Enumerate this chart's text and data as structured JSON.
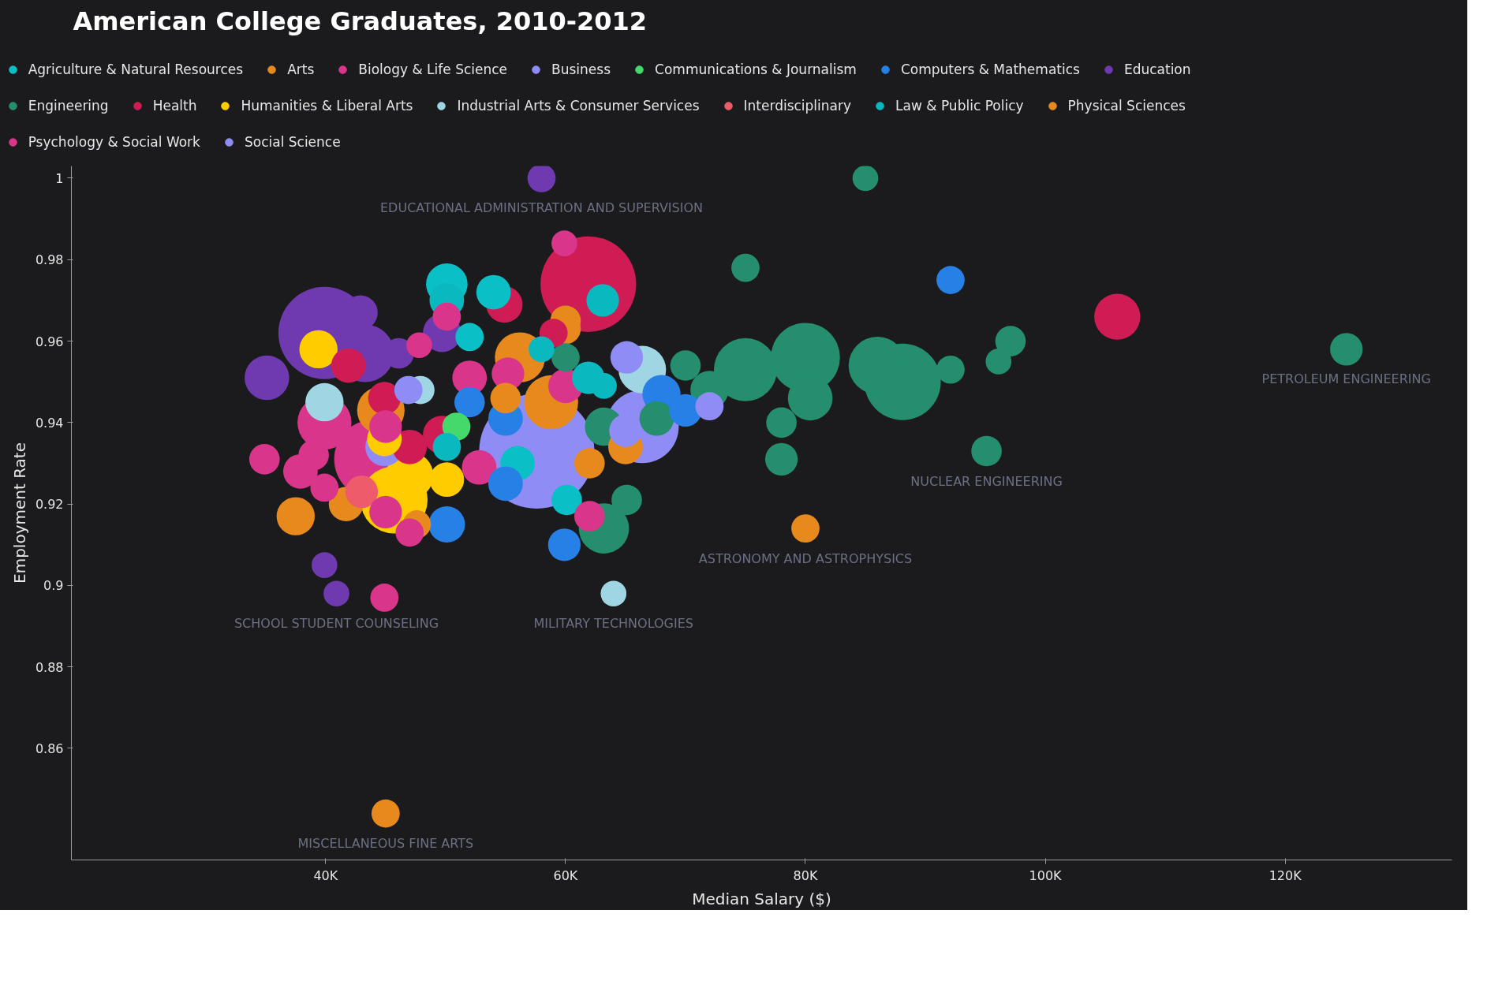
{
  "chart_data": {
    "type": "bubble",
    "title": "American College Graduates, 2010-2012",
    "xlabel": "Median Salary ($)",
    "ylabel": "Employment Rate",
    "legend": "top",
    "xlim": [
      18800,
      133900
    ],
    "ylim": [
      0.8326,
      1.003
    ],
    "xticks": [
      {
        "value": 40000,
        "label": "40K"
      },
      {
        "value": 60000,
        "label": "60K"
      },
      {
        "value": 80000,
        "label": "80K"
      },
      {
        "value": 100000,
        "label": "100K"
      },
      {
        "value": 120000,
        "label": "120K"
      }
    ],
    "yticks": [
      0.86,
      0.88,
      0.9,
      0.92,
      0.94,
      0.96,
      0.98,
      1
    ],
    "annotations": [
      {
        "text": "EDUCATIONAL ADMINISTRATION AND SUPERVISION",
        "x": 58000,
        "y": 1.0
      },
      {
        "text": "PETROLEUM ENGINEERING",
        "x": 125100,
        "y": 0.958
      },
      {
        "text": "NUCLEAR ENGINEERING",
        "x": 95100,
        "y": 0.933
      },
      {
        "text": "ASTRONOMY AND ASTROPHYSICS",
        "x": 80000,
        "y": 0.914
      },
      {
        "text": "SCHOOL STUDENT COUNSELING",
        "x": 40900,
        "y": 0.898
      },
      {
        "text": "MILITARY TECHNOLOGIES",
        "x": 64000,
        "y": 0.898
      },
      {
        "text": "MISCELLANEOUS FINE ARTS",
        "x": 45000,
        "y": 0.844
      }
    ],
    "series": [
      {
        "name": "Agriculture & Natural Resources",
        "color": "#0bbfc6",
        "x": [
          50100,
          54000,
          52000,
          60100,
          56000
        ],
        "values": [
          0.974,
          0.972,
          0.961,
          0.921,
          0.93
        ],
        "sizes": [
          0.13,
          0.09,
          0.06,
          0.07,
          0.09
        ]
      },
      {
        "name": "Arts",
        "color": "#e8891e",
        "x": [
          45000,
          37500,
          41700,
          47600,
          44600,
          55000
        ],
        "values": [
          0.844,
          0.917,
          0.92,
          0.915,
          0.943,
          0.946
        ],
        "sizes": [
          0.06,
          0.11,
          0.09,
          0.06,
          0.17,
          0.07
        ]
      },
      {
        "name": "Biology & Life Science",
        "color": "#d9368b",
        "x": [
          59900,
          50100,
          47800,
          55200,
          52000,
          60000,
          62000,
          52800
        ],
        "values": [
          0.984,
          0.966,
          0.959,
          0.952,
          0.951,
          0.949,
          0.917,
          0.929
        ],
        "sizes": [
          0.05,
          0.06,
          0.05,
          0.08,
          0.09,
          0.09,
          0.07,
          0.09
        ]
      },
      {
        "name": "Business",
        "color": "#8f8cf5",
        "x": [
          57600,
          66400,
          65100,
          65000,
          72000
        ],
        "values": [
          0.933,
          0.939,
          0.956,
          0.938,
          0.944
        ],
        "sizes": [
          1,
          0.4,
          0.08,
          0.08,
          0.06
        ]
      },
      {
        "name": "Communications & Journalism",
        "color": "#45d96b",
        "x": [
          50900
        ],
        "values": [
          0.939
        ],
        "sizes": [
          0.06
        ]
      },
      {
        "name": "Computers & Mathematics",
        "color": "#2680e6",
        "x": [
          92100,
          50100,
          55000,
          59900,
          55000,
          68000,
          70000,
          52000
        ],
        "values": [
          0.975,
          0.915,
          0.925,
          0.91,
          0.941,
          0.947,
          0.943,
          0.945
        ],
        "sizes": [
          0.06,
          0.1,
          0.09,
          0.08,
          0.09,
          0.11,
          0.08,
          0.07
        ]
      },
      {
        "name": "Education",
        "color": "#6f3aaf",
        "x": [
          58000,
          39900,
          42900,
          43300,
          35100,
          40900,
          39900,
          46100,
          49700
        ],
        "values": [
          1.0,
          0.962,
          0.967,
          0.957,
          0.951,
          0.898,
          0.905,
          0.957,
          0.962
        ],
        "sizes": [
          0.06,
          0.64,
          0.09,
          0.25,
          0.15,
          0.05,
          0.05,
          0.07,
          0.11
        ]
      },
      {
        "name": "Engineering",
        "color": "#248e6e",
        "x": [
          85000,
          75000,
          97100,
          96100,
          92100,
          88100,
          86000,
          80000,
          80400,
          78000,
          78000,
          95100,
          75000,
          72000,
          63200,
          65100,
          125100,
          60000,
          63200,
          70000,
          67600
        ],
        "values": [
          1.0,
          0.978,
          0.96,
          0.955,
          0.953,
          0.95,
          0.954,
          0.956,
          0.946,
          0.94,
          0.931,
          0.933,
          0.953,
          0.948,
          0.914,
          0.921,
          0.958,
          0.956,
          0.939,
          0.954,
          0.941
        ],
        "sizes": [
          0.05,
          0.06,
          0.07,
          0.05,
          0.06,
          0.44,
          0.25,
          0.36,
          0.15,
          0.07,
          0.08,
          0.07,
          0.3,
          0.11,
          0.19,
          0.07,
          0.08,
          0.06,
          0.11,
          0.07,
          0.09
        ]
      },
      {
        "name": "Health",
        "color": "#cf1c55",
        "x": [
          61900,
          54900,
          41900,
          44900,
          47000,
          106000,
          49700,
          59000
        ],
        "values": [
          0.974,
          0.969,
          0.954,
          0.946,
          0.934,
          0.966,
          0.937,
          0.962
        ],
        "sizes": [
          0.69,
          0.1,
          0.09,
          0.08,
          0.09,
          0.16,
          0.11,
          0.06
        ]
      },
      {
        "name": "Humanities & Liberal Arts",
        "color": "#ffcc00",
        "x": [
          39400,
          45700,
          50100,
          47000,
          44900
        ],
        "values": [
          0.958,
          0.921,
          0.926,
          0.927,
          0.936
        ],
        "sizes": [
          0.11,
          0.34,
          0.09,
          0.17,
          0.09
        ]
      },
      {
        "name": "Industrial Arts & Consumer Services",
        "color": "#a0d6e4",
        "x": [
          64000,
          39900,
          47900,
          66400
        ],
        "values": [
          0.898,
          0.945,
          0.948,
          0.953
        ],
        "sizes": [
          0.05,
          0.11,
          0.06,
          0.17
        ]
      },
      {
        "name": "Interdisciplinary",
        "color": "#ee5b6a",
        "x": [
          43000
        ],
        "values": [
          0.923
        ],
        "sizes": [
          0.08
        ]
      },
      {
        "name": "Law & Public Policy",
        "color": "#0ab8c0",
        "x": [
          63100,
          50100,
          61900,
          50100,
          58000,
          63200
        ],
        "values": [
          0.97,
          0.97,
          0.951,
          0.934,
          0.958,
          0.949
        ],
        "sizes": [
          0.08,
          0.09,
          0.08,
          0.06,
          0.05,
          0.05
        ]
      },
      {
        "name": "Physical Sciences",
        "color": "#e8891e",
        "x": [
          80000,
          62000,
          60000,
          60000,
          56200,
          58800,
          65000
        ],
        "values": [
          0.914,
          0.93,
          0.963,
          0.965,
          0.956,
          0.945,
          0.934
        ],
        "sizes": [
          0.06,
          0.07,
          0.07,
          0.07,
          0.19,
          0.22,
          0.09
        ]
      },
      {
        "name": "Psychology & Social Work",
        "color": "#d9368b",
        "x": [
          34900,
          37900,
          44900,
          39900,
          39000,
          39900,
          45000,
          47000,
          45000,
          44000
        ],
        "values": [
          0.931,
          0.928,
          0.897,
          0.94,
          0.932,
          0.924,
          0.918,
          0.913,
          0.939,
          0.931
        ],
        "sizes": [
          0.07,
          0.09,
          0.06,
          0.22,
          0.07,
          0.06,
          0.08,
          0.06,
          0.08,
          0.47
        ]
      },
      {
        "name": "Social Science",
        "color": "#8f8cf5",
        "x": [
          44900,
          46900
        ],
        "values": [
          0.934,
          0.948
        ],
        "sizes": [
          0.11,
          0.06
        ]
      }
    ]
  }
}
